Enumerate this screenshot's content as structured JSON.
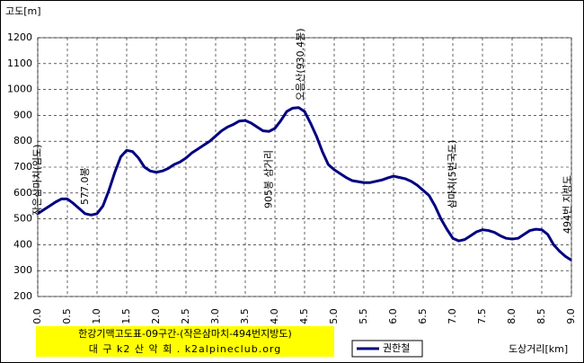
{
  "chart_data": {
    "type": "line",
    "title": "한강기맥고도표-09구간-(작은삼마치-494번지방도)",
    "subtitle": "대 구 k2 산 악 회 . k2alpineclub.org",
    "y_label": "고도[m]",
    "x_label": "도상거리[km]",
    "x": [
      0,
      0.1,
      0.2,
      0.3,
      0.4,
      0.5,
      0.6,
      0.7,
      0.8,
      0.9,
      1,
      1.1,
      1.2,
      1.3,
      1.4,
      1.5,
      1.6,
      1.7,
      1.8,
      1.9,
      2,
      2.1,
      2.2,
      2.3,
      2.4,
      2.5,
      2.6,
      2.7,
      2.8,
      2.9,
      3,
      3.1,
      3.2,
      3.3,
      3.4,
      3.5,
      3.6,
      3.7,
      3.8,
      3.9,
      4,
      4.1,
      4.2,
      4.3,
      4.4,
      4.5,
      4.6,
      4.7,
      4.8,
      4.9,
      5,
      5.1,
      5.2,
      5.3,
      5.4,
      5.5,
      5.6,
      5.7,
      5.8,
      5.9,
      6,
      6.1,
      6.2,
      6.3,
      6.4,
      6.5,
      6.6,
      6.7,
      6.8,
      6.9,
      7,
      7.1,
      7.2,
      7.3,
      7.4,
      7.5,
      7.6,
      7.7,
      7.8,
      7.9,
      8,
      8.1,
      8.2,
      8.3,
      8.4,
      8.5,
      8.6,
      8.7,
      8.8,
      8.9,
      9
    ],
    "series": [
      {
        "name": "권한철",
        "color": "#000080",
        "values": [
          520,
          535,
          550,
          565,
          577,
          577,
          560,
          540,
          520,
          515,
          520,
          550,
          610,
          680,
          740,
          765,
          760,
          735,
          700,
          685,
          680,
          685,
          695,
          710,
          720,
          735,
          755,
          770,
          785,
          800,
          820,
          840,
          855,
          865,
          878,
          880,
          870,
          855,
          840,
          838,
          850,
          880,
          915,
          928,
          930,
          915,
          870,
          820,
          760,
          710,
          690,
          675,
          660,
          648,
          644,
          640,
          640,
          645,
          650,
          658,
          665,
          660,
          655,
          645,
          630,
          610,
          590,
          550,
          500,
          460,
          425,
          415,
          420,
          435,
          450,
          458,
          455,
          448,
          435,
          425,
          422,
          425,
          440,
          455,
          460,
          458,
          440,
          400,
          375,
          355,
          340
        ]
      }
    ],
    "xlim": [
      0,
      9
    ],
    "ylim": [
      200,
      1200
    ],
    "xticks": [
      {
        "value": 0,
        "label": "0.0"
      },
      0.5,
      {
        "value": 1,
        "label": "1.0"
      },
      1.5,
      {
        "value": 2,
        "label": "2.0"
      },
      2.5,
      {
        "value": 3,
        "label": "3.0"
      },
      3.5,
      {
        "value": 4,
        "label": "4.0"
      },
      4.5,
      {
        "value": 5,
        "label": "5.0"
      },
      5.5,
      {
        "value": 6,
        "label": "6.0"
      },
      6.5,
      {
        "value": 7,
        "label": "7.0"
      },
      7.5,
      {
        "value": 8,
        "label": "8.0"
      },
      8.5,
      {
        "value": 9,
        "label": "9.0"
      }
    ],
    "yticks": [
      200,
      300,
      400,
      500,
      600,
      700,
      800,
      900,
      1000,
      1100,
      1200
    ],
    "grid": true,
    "annotations": [
      {
        "text": "작은삼마치(임도)",
        "x": 0
      },
      {
        "text": "577.0봉",
        "x": 0.5
      },
      {
        "text": "905봉 삼거리",
        "x": 3.9
      },
      {
        "text": "오음산(930.4봉)",
        "x": 4.5
      },
      {
        "text": "삼마치(5번국도)",
        "x": 7
      },
      {
        "text": "494번 지방도",
        "x": 9
      }
    ]
  }
}
